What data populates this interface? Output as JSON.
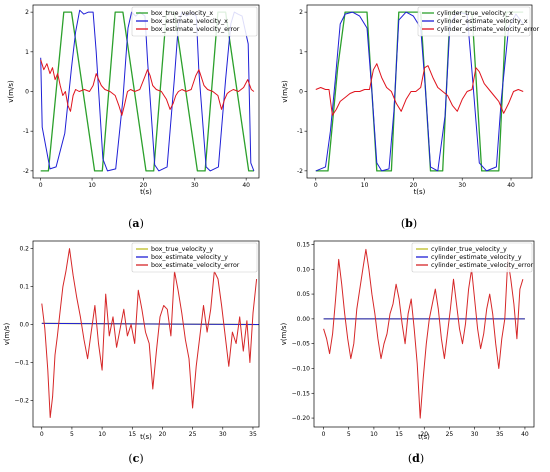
{
  "colors": {
    "true": "#2ca02c",
    "estimate": "#1f1fd6",
    "error": "#e0141e",
    "true_y": "#bcbd22",
    "estimate_y": "#1f1fd6",
    "error_y": "#d62728"
  },
  "chart_data": [
    {
      "panel": "a",
      "caption": {
        "open": "(",
        "letter": "a",
        "close": ")"
      },
      "type": "line",
      "xlabel": "t(s)",
      "ylabel": "v(m/s)",
      "xlim": [
        -1.5,
        42.5
      ],
      "ylim": [
        -2.18,
        2.18
      ],
      "xticks": [
        0,
        10,
        20,
        30,
        40
      ],
      "yticks": [
        -2,
        -1,
        0,
        1,
        2
      ],
      "legend_position": "top-right",
      "series": [
        {
          "name": "box_true_velocity_x",
          "color_key": "true",
          "x": [
            0,
            1.5,
            4.5,
            6.0,
            10.5,
            12.0,
            14.5,
            16.0,
            20.5,
            22.0,
            24.5,
            26.0,
            30.5,
            32.0,
            34.5,
            36.0,
            40.5,
            41.5
          ],
          "y": [
            -2,
            -2,
            2,
            2,
            -2,
            -2,
            2,
            2,
            -2,
            -2,
            2,
            2,
            -2,
            -2,
            2,
            2,
            -2,
            -2
          ]
        },
        {
          "name": "box_estimate_velocity_x",
          "color_key": "estimate",
          "x": [
            0,
            0.3,
            1.8,
            3.0,
            4.7,
            6.0,
            6.8,
            7.6,
            8.4,
            9.3,
            10.2,
            10.8,
            12.1,
            13.0,
            14.6,
            16.0,
            17.0,
            17.7,
            18.5,
            19.3,
            20.3,
            20.8,
            22.2,
            23.0,
            24.6,
            26.0,
            26.8,
            27.5,
            28.4,
            29.3,
            30.3,
            30.8,
            32.2,
            33.0,
            34.6,
            36.0,
            37.0,
            37.7,
            38.4,
            39.2,
            40.4,
            40.9,
            41.5
          ],
          "y": [
            0.85,
            -0.9,
            -1.95,
            -1.9,
            -1.05,
            0.6,
            1.5,
            2.05,
            1.95,
            2.0,
            2.0,
            1.0,
            -1.7,
            -2.0,
            -1.95,
            -0.2,
            1.6,
            2.0,
            1.9,
            2.0,
            1.9,
            0.8,
            -1.85,
            -2.0,
            -1.9,
            0.3,
            1.7,
            2.0,
            1.9,
            2.0,
            1.9,
            0.5,
            -1.9,
            -2.0,
            -1.9,
            0.3,
            1.7,
            2.0,
            1.95,
            1.9,
            1.2,
            -1.8,
            -2.0
          ]
        },
        {
          "name": "box_estimate_velocity_error",
          "color_key": "error",
          "x": [
            0,
            0.6,
            1.2,
            1.8,
            2.3,
            2.8,
            3.3,
            3.8,
            4.3,
            4.8,
            5.3,
            5.8,
            6.3,
            6.8,
            7.5,
            8.5,
            9.5,
            10.2,
            10.8,
            11.3,
            11.8,
            12.5,
            13.5,
            14.5,
            15.2,
            15.8,
            16.3,
            16.9,
            17.5,
            18.3,
            19.3,
            20.2,
            20.8,
            21.3,
            21.8,
            22.5,
            23.5,
            24.5,
            25.2,
            25.8,
            26.3,
            26.8,
            27.5,
            28.3,
            29.3,
            30.2,
            30.8,
            31.3,
            31.8,
            32.5,
            33.5,
            34.5,
            35.2,
            35.8,
            36.3,
            36.8,
            37.5,
            38.5,
            39.5,
            40.3,
            41.0,
            41.5
          ],
          "y": [
            0.8,
            0.55,
            0.7,
            0.45,
            0.6,
            0.3,
            0.45,
            0.15,
            -0.1,
            0.0,
            -0.35,
            -0.5,
            -0.1,
            0.05,
            0.0,
            0.05,
            0.0,
            0.15,
            0.45,
            0.3,
            0.15,
            0.05,
            0.0,
            -0.1,
            -0.35,
            -0.6,
            -0.35,
            0.0,
            0.05,
            0.0,
            0.05,
            0.35,
            0.55,
            0.4,
            0.15,
            0.05,
            0.0,
            -0.2,
            -0.45,
            -0.3,
            -0.1,
            0.0,
            0.05,
            0.0,
            0.05,
            0.4,
            0.55,
            0.35,
            0.15,
            0.05,
            0.0,
            -0.1,
            -0.45,
            -0.2,
            -0.05,
            0.0,
            0.05,
            0.0,
            0.1,
            0.3,
            0.05,
            0.0
          ]
        }
      ]
    },
    {
      "panel": "b",
      "caption": {
        "open": "(",
        "letter": "b",
        "close": ")"
      },
      "type": "line",
      "xlabel": "t(s)",
      "ylabel": "v(m/s)",
      "xlim": [
        -1.8,
        44.3
      ],
      "ylim": [
        -2.18,
        2.18
      ],
      "xticks": [
        0,
        10,
        20,
        30,
        40
      ],
      "yticks": [
        -2,
        -1,
        0,
        1,
        2
      ],
      "legend_position": "top-right",
      "series": [
        {
          "name": "cylinder_true_velocity_x",
          "color_key": "true",
          "x": [
            0,
            2.5,
            4.5,
            6.0,
            10.5,
            12.5,
            15.5,
            17.0,
            21.5,
            23.5,
            26.0,
            27.5,
            32.0,
            34.0,
            37.5,
            39.0,
            42.5
          ],
          "y": [
            -2,
            -2,
            0.6,
            2,
            2,
            -2,
            -2,
            2,
            2,
            -2,
            -2,
            2,
            2,
            -2,
            -2,
            2,
            2
          ]
        },
        {
          "name": "cylinder_estimate_velocity_x",
          "color_key": "estimate",
          "x": [
            0,
            2.0,
            3.0,
            4.0,
            5.0,
            6.0,
            7.5,
            9.0,
            10.5,
            11.5,
            12.5,
            13.5,
            15.0,
            16.0,
            17.0,
            18.5,
            20.0,
            21.5,
            22.5,
            23.5,
            25.0,
            26.5,
            27.5,
            29.0,
            31.0,
            32.0,
            33.5,
            35.0,
            37.0,
            38.0,
            39.5,
            41.0,
            42.5
          ],
          "y": [
            -2.0,
            -1.9,
            -1.0,
            0.3,
            1.7,
            1.95,
            2.0,
            1.9,
            1.6,
            0.0,
            -1.8,
            -2.0,
            -1.95,
            -0.5,
            1.8,
            2.0,
            1.9,
            1.6,
            0.0,
            -1.9,
            -2.0,
            -0.6,
            1.7,
            2.0,
            1.95,
            0.5,
            -1.8,
            -2.0,
            -1.9,
            -0.2,
            1.6,
            1.95,
            1.7
          ]
        },
        {
          "name": "cylinder_estimate_velocity_error",
          "color_key": "error",
          "x": [
            0,
            1.0,
            2.0,
            2.7,
            3.4,
            4.2,
            5.0,
            6.0,
            7.0,
            8.0,
            9.0,
            10.0,
            11.0,
            11.8,
            12.5,
            13.5,
            14.5,
            15.5,
            16.5,
            17.5,
            18.5,
            19.5,
            20.5,
            21.5,
            22.3,
            23.0,
            24.0,
            25.0,
            26.0,
            27.0,
            28.0,
            29.0,
            30.0,
            31.0,
            32.0,
            32.8,
            33.5,
            34.5,
            35.5,
            36.5,
            37.5,
            38.5,
            39.5,
            40.5,
            41.5,
            42.5
          ],
          "y": [
            0.05,
            0.1,
            0.05,
            0.05,
            -0.6,
            -0.45,
            -0.25,
            -0.15,
            -0.05,
            0.0,
            0.0,
            0.05,
            0.05,
            0.55,
            0.7,
            0.35,
            0.1,
            0.0,
            -0.3,
            -0.5,
            -0.2,
            0.0,
            0.0,
            0.1,
            0.6,
            0.65,
            0.35,
            0.1,
            0.0,
            -0.1,
            -0.35,
            -0.5,
            -0.2,
            0.0,
            0.05,
            0.6,
            0.5,
            0.2,
            0.05,
            -0.1,
            -0.25,
            -0.55,
            -0.3,
            0.0,
            0.05,
            0.0
          ]
        }
      ]
    },
    {
      "panel": "c",
      "caption": {
        "open": "(",
        "letter": "c",
        "close": ")"
      },
      "type": "line",
      "xlabel": "t(s)",
      "ylabel": "v(m/s)",
      "xlim": [
        -1.45,
        36.0
      ],
      "ylim": [
        -0.27,
        0.22
      ],
      "xticks": [
        0,
        5,
        10,
        15,
        20,
        25,
        30,
        35
      ],
      "yticks": [
        -0.2,
        -0.1,
        0.0,
        0.1,
        0.2
      ],
      "legend_position": "top-right",
      "series": [
        {
          "name": "box_true_velocity_y",
          "color_key": "true_y",
          "x": [
            0,
            36
          ],
          "y": [
            0.003,
            0.0
          ]
        },
        {
          "name": "box_estimate_velocity_y",
          "color_key": "estimate_y",
          "x": [
            0,
            36
          ],
          "y": [
            0.003,
            0.0
          ]
        },
        {
          "name": "box_estimate_velocity_error",
          "color_key": "error_y",
          "x": [
            0,
            0.5,
            1.0,
            1.4,
            1.8,
            2.2,
            2.6,
            3.0,
            3.5,
            4.0,
            4.6,
            5.2,
            5.8,
            6.4,
            7.0,
            7.6,
            8.2,
            8.8,
            9.4,
            10.0,
            10.6,
            11.2,
            11.8,
            12.4,
            13.0,
            13.6,
            14.2,
            14.8,
            15.4,
            16.0,
            16.6,
            17.2,
            17.8,
            18.4,
            19.0,
            19.6,
            20.2,
            20.8,
            21.4,
            22.0,
            22.6,
            23.2,
            23.8,
            24.4,
            25.0,
            25.6,
            26.2,
            26.8,
            27.4,
            28.0,
            28.6,
            29.2,
            29.8,
            30.4,
            31.0,
            31.6,
            32.2,
            32.8,
            33.4,
            34.0,
            34.5,
            35.0,
            35.6
          ],
          "y": [
            0.055,
            -0.01,
            -0.12,
            -0.245,
            -0.19,
            -0.08,
            -0.03,
            0.03,
            0.1,
            0.14,
            0.2,
            0.13,
            0.07,
            0.02,
            -0.04,
            -0.09,
            -0.02,
            0.05,
            -0.05,
            -0.12,
            0.08,
            -0.03,
            0.02,
            -0.06,
            -0.01,
            0.04,
            -0.03,
            0.0,
            -0.05,
            0.09,
            0.04,
            -0.02,
            -0.05,
            -0.17,
            -0.07,
            0.02,
            0.05,
            0.04,
            -0.03,
            0.14,
            0.09,
            0.03,
            -0.04,
            -0.09,
            -0.22,
            -0.11,
            -0.03,
            0.05,
            -0.02,
            0.04,
            0.14,
            0.12,
            0.05,
            -0.03,
            -0.11,
            -0.02,
            -0.05,
            0.02,
            -0.07,
            0.01,
            -0.1,
            0.03,
            0.12
          ]
        }
      ]
    },
    {
      "panel": "d",
      "caption": {
        "open": "(",
        "letter": "d",
        "close": ")"
      },
      "type": "line",
      "xlabel": "t(s)",
      "ylabel": "v(m/s)",
      "xlim": [
        -1.9,
        41.8
      ],
      "ylim": [
        -0.218,
        0.157
      ],
      "xticks": [
        0,
        5,
        10,
        15,
        20,
        25,
        30,
        35,
        40
      ],
      "yticks": [
        -0.2,
        -0.15,
        -0.1,
        -0.05,
        0.0,
        0.05,
        0.1,
        0.15
      ],
      "legend_position": "top-right",
      "series": [
        {
          "name": "cylinder_true_velocity_y",
          "color_key": "true_y",
          "x": [
            0,
            40
          ],
          "y": [
            0.0,
            0.0
          ]
        },
        {
          "name": "cylinder_estimate_velocity_y",
          "color_key": "estimate_y",
          "x": [
            0,
            40
          ],
          "y": [
            0.0,
            0.0
          ]
        },
        {
          "name": "cylinder_estimate_velocity_error",
          "color_key": "error_y",
          "x": [
            0,
            0.6,
            1.2,
            1.8,
            2.4,
            3.0,
            3.6,
            4.2,
            4.8,
            5.4,
            6.0,
            6.6,
            7.2,
            7.8,
            8.4,
            9.0,
            9.6,
            10.2,
            10.8,
            11.4,
            12.0,
            12.6,
            13.2,
            13.8,
            14.4,
            15.0,
            15.6,
            16.2,
            16.8,
            17.4,
            18.0,
            18.6,
            19.2,
            19.8,
            20.4,
            21.0,
            21.6,
            22.2,
            22.8,
            23.4,
            24.0,
            24.6,
            25.2,
            25.8,
            26.4,
            27.0,
            27.6,
            28.2,
            28.8,
            29.4,
            30.0,
            30.6,
            31.2,
            31.8,
            32.4,
            33.0,
            33.6,
            34.2,
            34.8,
            35.4,
            36.0,
            36.6,
            37.2,
            37.8,
            38.4,
            39.0,
            39.6
          ],
          "y": [
            -0.02,
            -0.04,
            -0.07,
            -0.03,
            0.04,
            0.12,
            0.07,
            0.01,
            -0.04,
            -0.08,
            -0.05,
            0.02,
            0.06,
            0.1,
            0.14,
            0.1,
            0.05,
            0.01,
            -0.04,
            -0.08,
            -0.05,
            -0.03,
            0.01,
            0.03,
            0.07,
            0.04,
            -0.01,
            -0.05,
            0.01,
            0.04,
            -0.02,
            -0.09,
            -0.2,
            -0.12,
            -0.05,
            0.0,
            0.03,
            0.06,
            0.02,
            -0.04,
            -0.08,
            -0.03,
            0.02,
            0.08,
            0.03,
            -0.02,
            -0.05,
            -0.01,
            0.06,
            0.1,
            0.04,
            -0.02,
            -0.06,
            -0.03,
            0.02,
            0.05,
            0.01,
            -0.05,
            -0.1,
            -0.04,
            0.0,
            0.12,
            0.08,
            0.03,
            -0.04,
            0.06,
            0.08
          ]
        }
      ]
    }
  ]
}
